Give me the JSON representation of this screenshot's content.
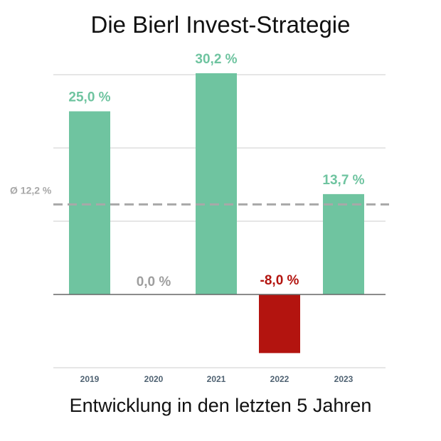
{
  "title": "Die Bierl Invest-Strategie",
  "subtitle": "Entwicklung in den letzten 5 Jahren",
  "chart_data": {
    "type": "bar",
    "categories": [
      "2019",
      "2020",
      "2021",
      "2022",
      "2023"
    ],
    "values": [
      25.0,
      0.0,
      30.2,
      -8.0,
      13.7
    ],
    "data_labels": [
      "25,0 %",
      "0,0 %",
      "30,2 %",
      "-8,0 %",
      "13,7 %"
    ],
    "average": {
      "value": 12.2,
      "label": "Ø 12,2 %"
    },
    "ylim": [
      -10,
      30
    ],
    "grid": true,
    "colors": {
      "positive": "#6fc4a0",
      "negative": "#b3140f",
      "zero_label": "#9e9e9e",
      "average_line": "#a8a8a8",
      "gridline": "#dddddd",
      "baseline": "#666666",
      "tick_label": "#4f6272"
    }
  }
}
